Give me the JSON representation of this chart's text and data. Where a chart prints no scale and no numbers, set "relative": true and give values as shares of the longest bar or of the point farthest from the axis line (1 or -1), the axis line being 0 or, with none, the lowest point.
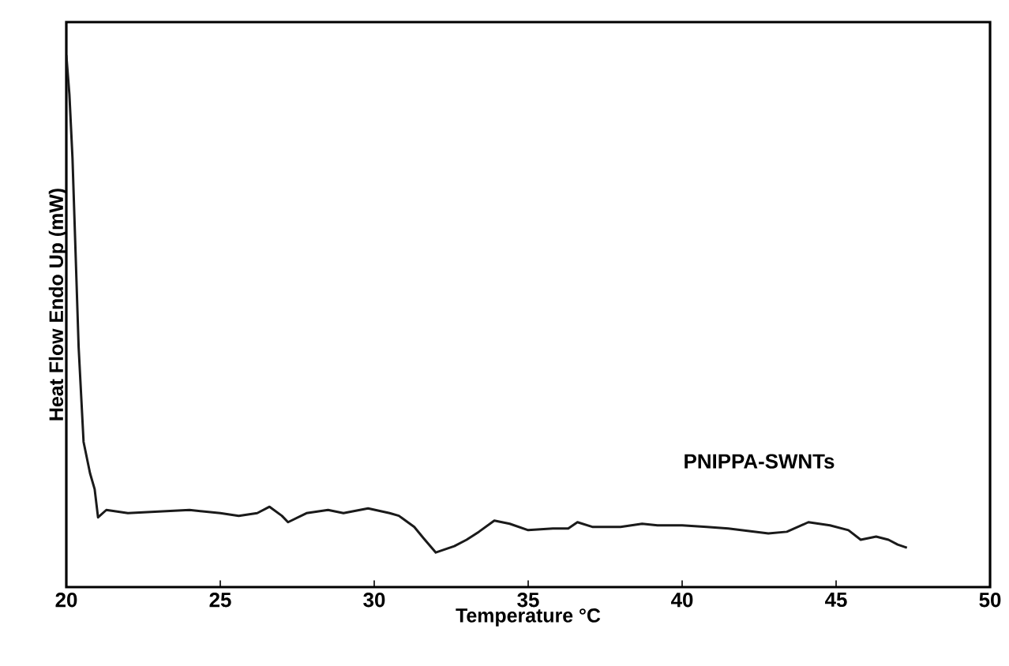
{
  "chart_data": {
    "type": "line",
    "xlabel": "Temperature °C",
    "ylabel": "Heat Flow Endo Up (mW)",
    "relative": true,
    "xlim": [
      20,
      50
    ],
    "xticks": [
      20,
      25,
      30,
      35,
      40,
      45,
      50
    ],
    "marker": "none",
    "line_style": "solid",
    "grid": false,
    "legend": false,
    "series": [
      {
        "name": "PNIPPA-SWNTs",
        "color": "#1a1a1a",
        "x": [
          20.0,
          20.1,
          20.2,
          20.3,
          20.4,
          20.56,
          20.77,
          20.92,
          21.03,
          21.3,
          22.0,
          23.0,
          24.0,
          25.0,
          25.6,
          26.2,
          26.6,
          27.0,
          27.2,
          27.8,
          28.5,
          29.0,
          29.8,
          30.5,
          30.8,
          31.3,
          31.6,
          32.0,
          32.6,
          33.0,
          33.4,
          33.9,
          34.4,
          35.0,
          35.8,
          36.3,
          36.6,
          37.1,
          38.0,
          38.7,
          39.2,
          40.0,
          40.8,
          41.5,
          42.8,
          43.4,
          44.1,
          44.8,
          45.4,
          45.8,
          46.3,
          46.7,
          47.0,
          47.3
        ],
        "values": [
          1.0,
          0.926,
          0.807,
          0.629,
          0.451,
          0.273,
          0.214,
          0.184,
          0.131,
          0.145,
          0.139,
          0.142,
          0.145,
          0.139,
          0.134,
          0.139,
          0.151,
          0.134,
          0.122,
          0.139,
          0.145,
          0.139,
          0.148,
          0.139,
          0.134,
          0.113,
          0.092,
          0.065,
          0.077,
          0.089,
          0.104,
          0.125,
          0.119,
          0.107,
          0.11,
          0.11,
          0.122,
          0.113,
          0.113,
          0.119,
          0.116,
          0.116,
          0.113,
          0.11,
          0.101,
          0.104,
          0.122,
          0.116,
          0.107,
          0.089,
          0.095,
          0.089,
          0.08,
          0.074
        ]
      }
    ]
  }
}
